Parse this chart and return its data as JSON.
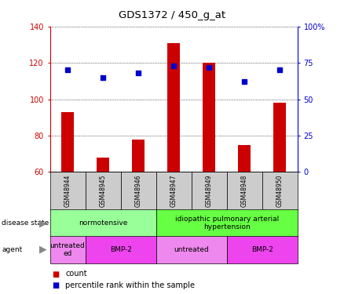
{
  "title": "GDS1372 / 450_g_at",
  "samples": [
    "GSM48944",
    "GSM48945",
    "GSM48946",
    "GSM48947",
    "GSM48949",
    "GSM48948",
    "GSM48950"
  ],
  "count_values": [
    93,
    68,
    78,
    131,
    120,
    75,
    98
  ],
  "percentile_values": [
    70,
    65,
    68,
    73,
    72,
    62,
    70
  ],
  "ylim_left": [
    60,
    140
  ],
  "ylim_right": [
    0,
    100
  ],
  "yticks_left": [
    60,
    80,
    100,
    120,
    140
  ],
  "yticks_right": [
    0,
    25,
    50,
    75,
    100
  ],
  "bar_color": "#cc0000",
  "dot_color": "#0000cc",
  "bar_width": 0.35,
  "disease_state_groups": [
    {
      "label": "normotensive",
      "start": 0,
      "end": 3,
      "color": "#99ff99"
    },
    {
      "label": "idiopathic pulmonary arterial\nhypertension",
      "start": 3,
      "end": 7,
      "color": "#66ff44"
    }
  ],
  "agent_groups": [
    {
      "label": "untreated\ned",
      "start": 0,
      "end": 1,
      "color": "#ee88ee"
    },
    {
      "label": "BMP-2",
      "start": 1,
      "end": 3,
      "color": "#ee44ee"
    },
    {
      "label": "untreated",
      "start": 3,
      "end": 5,
      "color": "#ee88ee"
    },
    {
      "label": "BMP-2",
      "start": 5,
      "end": 7,
      "color": "#ee44ee"
    }
  ],
  "legend_count_color": "#cc0000",
  "legend_pct_color": "#0000cc",
  "left_axis_color": "#cc0000",
  "right_axis_color": "#0000cc",
  "background_color": "#ffffff",
  "plot_bg_color": "#ffffff",
  "tick_bg_color": "#cccccc"
}
